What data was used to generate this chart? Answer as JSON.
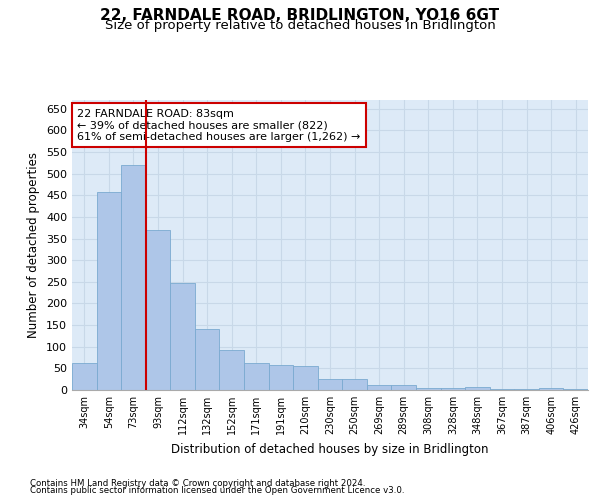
{
  "title": "22, FARNDALE ROAD, BRIDLINGTON, YO16 6GT",
  "subtitle": "Size of property relative to detached houses in Bridlington",
  "xlabel": "Distribution of detached houses by size in Bridlington",
  "ylabel": "Number of detached properties",
  "categories": [
    "34sqm",
    "54sqm",
    "73sqm",
    "93sqm",
    "112sqm",
    "132sqm",
    "152sqm",
    "171sqm",
    "191sqm",
    "210sqm",
    "230sqm",
    "250sqm",
    "269sqm",
    "289sqm",
    "308sqm",
    "328sqm",
    "348sqm",
    "367sqm",
    "387sqm",
    "406sqm",
    "426sqm"
  ],
  "values": [
    62,
    458,
    520,
    370,
    248,
    140,
    93,
    62,
    57,
    55,
    26,
    26,
    11,
    12,
    5,
    5,
    8,
    3,
    2,
    4,
    2
  ],
  "bar_color": "#aec6e8",
  "bar_edge_color": "#7aaad0",
  "red_line_x": 2.5,
  "annotation_text": "22 FARNDALE ROAD: 83sqm\n← 39% of detached houses are smaller (822)\n61% of semi-detached houses are larger (1,262) →",
  "annotation_box_color": "#ffffff",
  "annotation_box_edge": "#cc0000",
  "red_line_color": "#cc0000",
  "grid_color": "#c8d8e8",
  "background_color": "#ddeaf7",
  "footer_line1": "Contains HM Land Registry data © Crown copyright and database right 2024.",
  "footer_line2": "Contains public sector information licensed under the Open Government Licence v3.0.",
  "ylim": [
    0,
    670
  ],
  "title_fontsize": 11,
  "subtitle_fontsize": 9.5
}
